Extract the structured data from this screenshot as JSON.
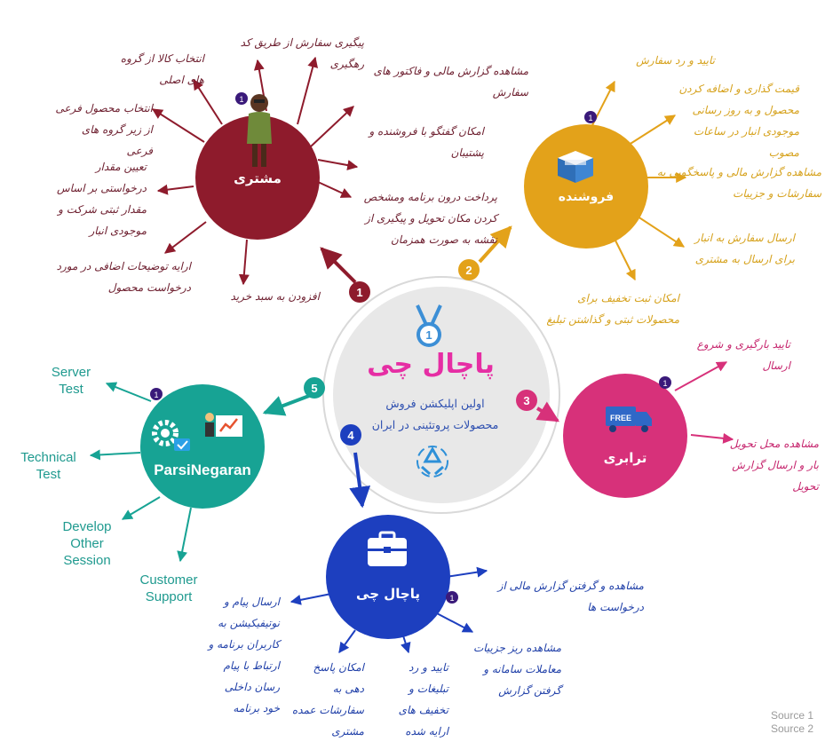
{
  "center": {
    "title": "پاچال چی",
    "subtitle": "اولین اپلیکشن فروش محصولات پروتئینی در ایران",
    "badge_number": "1"
  },
  "nodes": {
    "customer": {
      "title": "مشتری",
      "number": "1",
      "color": "#8e1b2c",
      "items": [
        "انتخاب کالا از گروه\nهای اصلی",
        "پیگیری سفارش از طریق کد\nرهگیری",
        "مشاهده گزارش مالی و فاکتور های\nسفارش",
        "امکان گفتگو با فروشنده و\nپشتیبان",
        "پرداخت درون برنامه ومشخص\nکردن مکان تحویل و پیگیری از\nنقشه به صورت همزمان",
        "افزودن به سبد خرید",
        "ارایه توضیحات اضافی در مورد\nدرخواست محصول",
        "تعیین مقدار\nدرخواستی بر اساس\nمقدار ثبتی شرکت و\nموجودی انبار",
        "انتخاب محصول فرعی\nاز زیر گروه های فرعی"
      ]
    },
    "seller": {
      "title": "فروشنده",
      "number": "2",
      "color": "#e3a21a",
      "items": [
        "تایید و رد سفارش",
        "قیمت گذاری و اضافه کردن\nمحصول و به روز رسانی\nموجودی انبار در ساعات\nمصوب",
        "مشاهده گزارش مالی و پاسخگویی به\nسفارشات و جزییات",
        "ارسال سفارش به انبار\nبرای ارسال به مشتری",
        "امکان ثبت تخفیف برای\nمحصولات ثبتی و گذاشتن تبلیغ"
      ]
    },
    "shipping": {
      "title": "ترابری",
      "number": "3",
      "color": "#d7317a",
      "truck_text": "FREE",
      "items": [
        "تایید بارگیری و شروع\nارسال",
        "مشاهده محل تحویل\nبار و ارسال گزارش\nتحویل"
      ]
    },
    "pachalchi": {
      "title": "پاچال چی",
      "number": "4",
      "color": "#1d3fbf",
      "items": [
        "مشاهده و گرفتن گزارش مالی از\nدرخواست ها",
        "مشاهده ریز جزییات\nمعاملات سامانه و\nگرفتن گزارش",
        "تایید و رد\nتبلیغات و\nتخفیف های\nارایه شده",
        "امکان پاسخ\nدهی به\nسفارشات عمده\nمشتری",
        "ارسال پیام و\nنوتیفیکیشن به\nکاربران برنامه و\nارتباط با پیام\nرسان داخلی\nخود برنامه"
      ]
    },
    "parsinegaran": {
      "title": "ParsiNegaran",
      "number": "5",
      "color": "#17a394",
      "items": [
        "Server\nTest",
        "Technical\nTest",
        "Develop\nOther\nSession",
        "Customer\nSupport"
      ]
    }
  },
  "sources": [
    "Source 1",
    "Source 2"
  ],
  "colors": {
    "center_disc": "#e8e8e8",
    "center_ring": "#d0d0d0",
    "small_badge": "#3a1a7a",
    "center_title": "#e62ea4"
  },
  "icons": [
    "person-icon",
    "box-icon",
    "truck-icon",
    "briefcase-icon",
    "gears-icon",
    "presentation-icon",
    "medal-icon",
    "recycle-icon"
  ]
}
